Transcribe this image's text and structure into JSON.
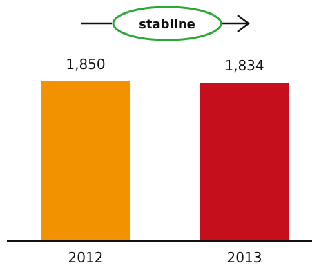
{
  "chart_data": {
    "type": "bar",
    "title": "",
    "xlabel": "",
    "ylabel": "",
    "categories": [
      "2012",
      "2013"
    ],
    "values": [
      1850,
      1834
    ],
    "value_labels": [
      "1,850",
      "1,834"
    ],
    "colors": [
      "#F39200",
      "#C50F1C"
    ],
    "ylim": [
      0,
      2250
    ],
    "grid": false,
    "legend": "none",
    "trend_indicator": {
      "label": "stabilne",
      "direction": "right",
      "ellipse_color": "#2BA839",
      "arrow_color": "#111111"
    }
  }
}
